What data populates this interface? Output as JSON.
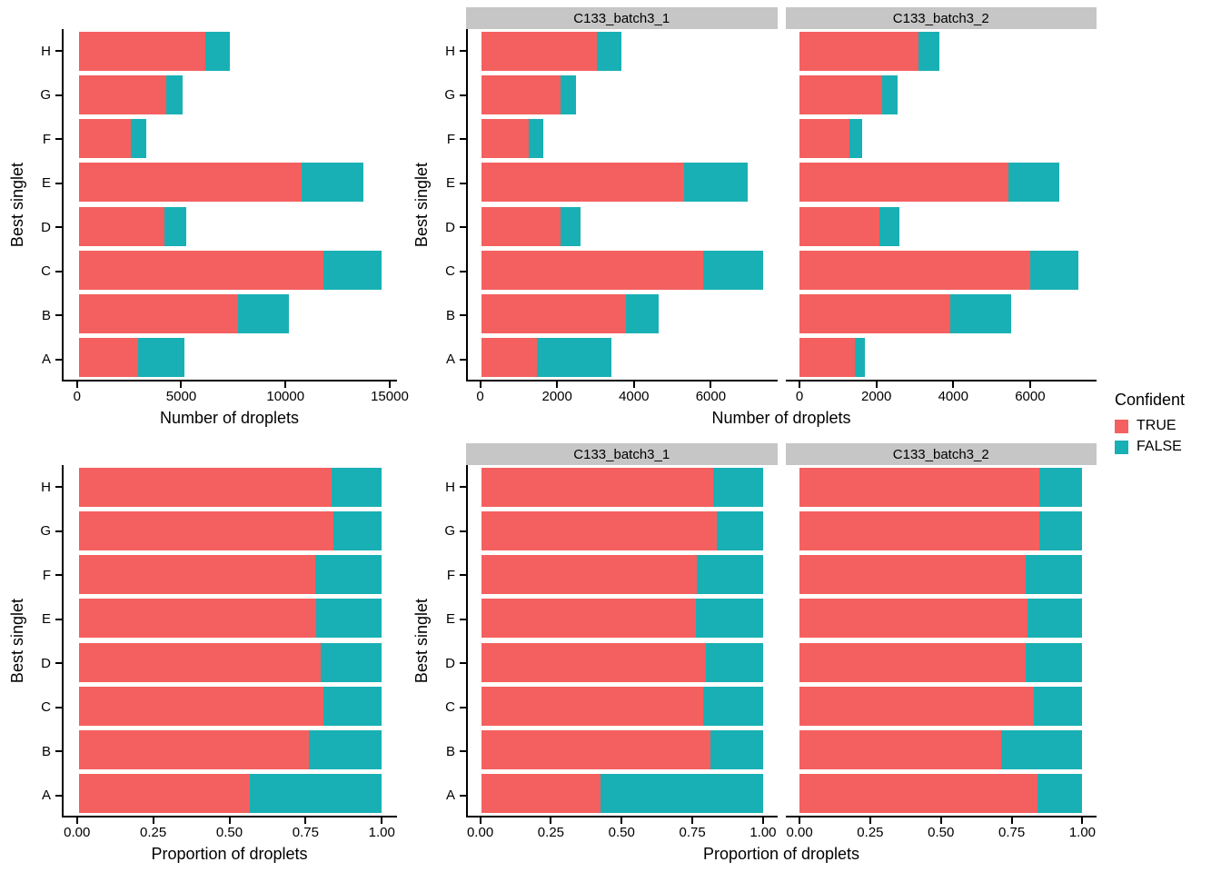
{
  "legend": {
    "title": "Confident",
    "items": [
      {
        "label": "TRUE",
        "color": "#F4605F"
      },
      {
        "label": "FALSE",
        "color": "#18B0B5"
      }
    ]
  },
  "styles": {
    "strip_color": "#C6C6C6",
    "axis_color": "#000000",
    "background": "#FFFFFF"
  },
  "categories": [
    "A",
    "B",
    "C",
    "D",
    "E",
    "F",
    "G",
    "H"
  ],
  "chart_data": [
    {
      "id": "counts_combined",
      "type": "bar",
      "orientation": "horizontal",
      "stacked": true,
      "xlabel": "Number of droplets",
      "ylabel": "Best singlet",
      "xticks": [
        {
          "v": 0,
          "label": "0"
        },
        {
          "v": 5000,
          "label": "5000"
        },
        {
          "v": 10000,
          "label": "10000"
        },
        {
          "v": 15000,
          "label": "15000"
        }
      ],
      "facets": [
        {
          "label": "",
          "show_y_axis": true,
          "series": [
            {
              "name": "TRUE",
              "values": [
                2870,
                7680,
                11810,
                4130,
                10740,
                2530,
                4220,
                6090
              ]
            },
            {
              "name": "FALSE",
              "values": [
                2220,
                2440,
                2810,
                1040,
                2970,
                710,
                800,
                1210
              ]
            }
          ]
        }
      ]
    },
    {
      "id": "counts_by_sample",
      "type": "bar",
      "orientation": "horizontal",
      "stacked": true,
      "xlabel": "Number of droplets",
      "ylabel": "Best singlet",
      "xticks": [
        {
          "v": 0,
          "label": "0"
        },
        {
          "v": 2000,
          "label": "2000"
        },
        {
          "v": 4000,
          "label": "4000"
        },
        {
          "v": 6000,
          "label": "6000"
        }
      ],
      "facets": [
        {
          "label": "C133_batch3_1",
          "show_y_axis": true,
          "series": [
            {
              "name": "TRUE",
              "values": [
                1430,
                3760,
                5800,
                2060,
                5300,
                1230,
                2060,
                3000
              ]
            },
            {
              "name": "FALSE",
              "values": [
                1950,
                860,
                1560,
                520,
                1660,
                380,
                410,
                650
              ]
            }
          ]
        },
        {
          "label": "C133_batch3_2",
          "show_y_axis": false,
          "series": [
            {
              "name": "TRUE",
              "values": [
                1440,
                3920,
                6010,
                2070,
                5440,
                1300,
                2160,
                3090
              ]
            },
            {
              "name": "FALSE",
              "values": [
                270,
                1580,
                1250,
                520,
                1310,
                330,
                390,
                560
              ]
            }
          ]
        }
      ]
    },
    {
      "id": "prop_combined",
      "type": "bar",
      "orientation": "horizontal",
      "stacked": true,
      "xlabel": "Proportion of droplets",
      "ylabel": "Best singlet",
      "xticks": [
        {
          "v": 0,
          "label": "0.00"
        },
        {
          "v": 0.25,
          "label": "0.25"
        },
        {
          "v": 0.5,
          "label": "0.50"
        },
        {
          "v": 0.75,
          "label": "0.75"
        },
        {
          "v": 1,
          "label": "1.00"
        }
      ],
      "facets": [
        {
          "label": "",
          "show_y_axis": true,
          "series": [
            {
              "name": "TRUE",
              "values": [
                0.564,
                0.759,
                0.808,
                0.799,
                0.783,
                0.781,
                0.841,
                0.834
              ]
            },
            {
              "name": "FALSE",
              "values": [
                0.436,
                0.241,
                0.192,
                0.201,
                0.217,
                0.219,
                0.159,
                0.166
              ]
            }
          ]
        }
      ]
    },
    {
      "id": "prop_by_sample",
      "type": "bar",
      "orientation": "horizontal",
      "stacked": true,
      "xlabel": "Proportion of droplets",
      "ylabel": "Best singlet",
      "xticks": [
        {
          "v": 0,
          "label": "0.00"
        },
        {
          "v": 0.25,
          "label": "0.25"
        },
        {
          "v": 0.5,
          "label": "0.50"
        },
        {
          "v": 0.75,
          "label": "0.75"
        },
        {
          "v": 1,
          "label": "1.00"
        }
      ],
      "facets": [
        {
          "label": "C133_batch3_1",
          "show_y_axis": true,
          "series": [
            {
              "name": "TRUE",
              "values": [
                0.423,
                0.814,
                0.788,
                0.798,
                0.761,
                0.764,
                0.834,
                0.822
              ]
            },
            {
              "name": "FALSE",
              "values": [
                0.577,
                0.186,
                0.212,
                0.202,
                0.239,
                0.236,
                0.166,
                0.178
              ]
            }
          ]
        },
        {
          "label": "C133_batch3_2",
          "show_y_axis": false,
          "series": [
            {
              "name": "TRUE",
              "values": [
                0.842,
                0.713,
                0.828,
                0.799,
                0.806,
                0.798,
                0.847,
                0.847
              ]
            },
            {
              "name": "FALSE",
              "values": [
                0.158,
                0.287,
                0.172,
                0.201,
                0.194,
                0.202,
                0.153,
                0.153
              ]
            }
          ]
        }
      ]
    }
  ]
}
